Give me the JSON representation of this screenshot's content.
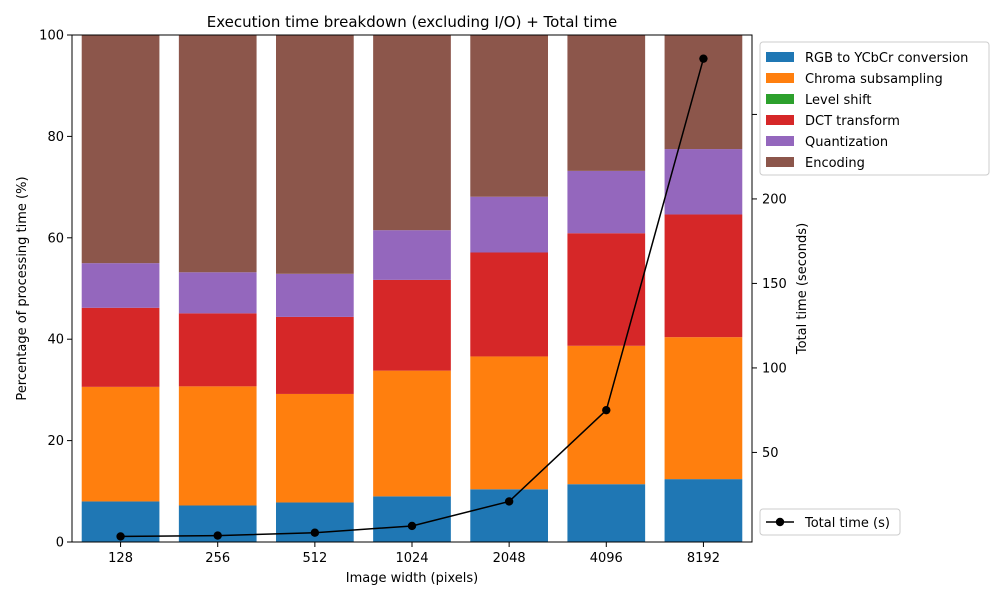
{
  "chart_data": {
    "type": "bar",
    "stacked": true,
    "title": "Execution time breakdown (excluding I/O) + Total time",
    "xlabel": "Image width (pixels)",
    "ylabel": "Percentage of processing time (%)",
    "y2label": "Total time (seconds)",
    "categories": [
      "128",
      "256",
      "512",
      "1024",
      "2048",
      "4096",
      "8192"
    ],
    "ylim": [
      0,
      100
    ],
    "yticks": [
      0,
      20,
      40,
      60,
      80,
      100
    ],
    "y2lim": [
      -3,
      297
    ],
    "y2ticks": [
      50,
      100,
      150,
      200,
      250
    ],
    "grid": false,
    "legend_position": "upper-right-outside",
    "series": [
      {
        "name": "RGB to YCbCr conversion",
        "color": "#1f77b4",
        "values": [
          8.0,
          7.2,
          7.8,
          9.0,
          10.4,
          11.4,
          12.4
        ]
      },
      {
        "name": "Chroma subsampling",
        "color": "#ff7f0e",
        "values": [
          22.6,
          23.5,
          21.4,
          24.8,
          26.2,
          27.3,
          28.0
        ]
      },
      {
        "name": "Level shift",
        "color": "#2ca02c",
        "values": [
          0,
          0,
          0,
          0,
          0,
          0,
          0
        ]
      },
      {
        "name": "DCT transform",
        "color": "#d62728",
        "values": [
          15.6,
          14.4,
          15.2,
          17.9,
          20.5,
          22.2,
          24.2
        ]
      },
      {
        "name": "Quantization",
        "color": "#9467bd",
        "values": [
          8.8,
          8.1,
          8.5,
          9.8,
          11.0,
          12.3,
          12.9
        ]
      },
      {
        "name": "Encoding",
        "color": "#8c564b",
        "values": [
          45.0,
          46.8,
          47.1,
          38.5,
          31.9,
          26.8,
          22.5
        ]
      }
    ],
    "line_series": {
      "name": "Total time (s)",
      "color": "#000000",
      "values": [
        0.3,
        0.8,
        2.5,
        6.5,
        21.0,
        75.0,
        283.0
      ]
    }
  }
}
